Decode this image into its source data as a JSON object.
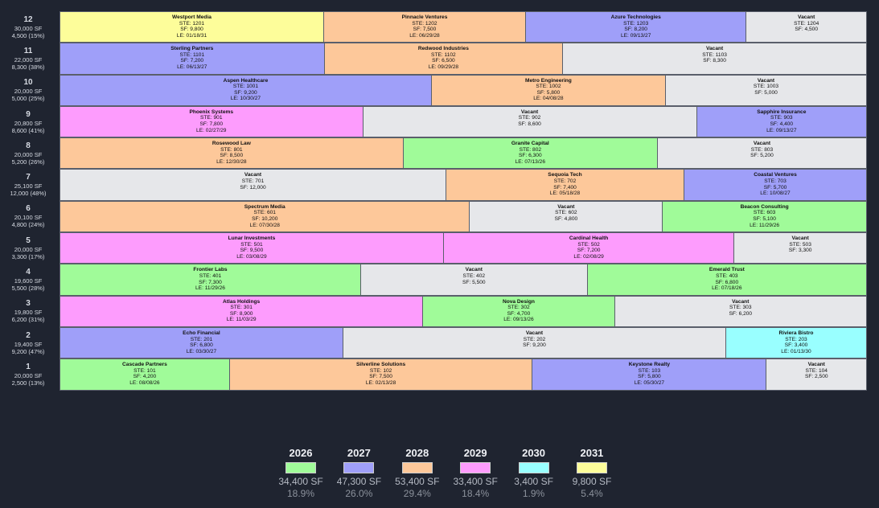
{
  "floors": [
    {
      "floor": "12",
      "total": "30,000 SF",
      "vacancy": "4,500 (15%)",
      "suites": [
        {
          "tenant": "Westport Media",
          "suite": "STE: 1201",
          "sf": "SF: 9,800",
          "le": "LE: 01/18/31",
          "year": "2031",
          "sf_value": 9800
        },
        {
          "tenant": "Pinnacle Ventures",
          "suite": "STE: 1202",
          "sf": "SF: 7,500",
          "le": "LE: 06/29/28",
          "year": "2028",
          "sf_value": 7500
        },
        {
          "tenant": "Azure Technologies",
          "suite": "STE: 1203",
          "sf": "SF: 8,200",
          "le": "LE: 09/13/27",
          "year": "2027",
          "sf_value": 8200
        },
        {
          "tenant": "Vacant",
          "suite": "STE: 1204",
          "sf": "SF: 4,500",
          "le": "",
          "year": "vac",
          "sf_value": 4500
        }
      ]
    },
    {
      "floor": "11",
      "total": "22,000 SF",
      "vacancy": "8,300 (38%)",
      "suites": [
        {
          "tenant": "Sterling Partners",
          "suite": "STE: 1101",
          "sf": "SF: 7,200",
          "le": "LE: 06/13/27",
          "year": "2027",
          "sf_value": 7200
        },
        {
          "tenant": "Redwood Industries",
          "suite": "STE: 1102",
          "sf": "SF: 6,500",
          "le": "LE: 09/29/28",
          "year": "2028",
          "sf_value": 6500
        },
        {
          "tenant": "Vacant",
          "suite": "STE: 1103",
          "sf": "SF: 8,300",
          "le": "",
          "year": "vac",
          "sf_value": 8300
        }
      ]
    },
    {
      "floor": "10",
      "total": "20,000 SF",
      "vacancy": "5,000 (25%)",
      "suites": [
        {
          "tenant": "Aspen Healthcare",
          "suite": "STE: 1001",
          "sf": "SF: 9,200",
          "le": "LE: 10/30/27",
          "year": "2027",
          "sf_value": 9200
        },
        {
          "tenant": "Metro Engineering",
          "suite": "STE: 1002",
          "sf": "SF: 5,800",
          "le": "LE: 04/08/28",
          "year": "2028",
          "sf_value": 5800
        },
        {
          "tenant": "Vacant",
          "suite": "STE: 1003",
          "sf": "SF: 5,000",
          "le": "",
          "year": "vac",
          "sf_value": 5000
        }
      ]
    },
    {
      "floor": "9",
      "total": "20,800 SF",
      "vacancy": "8,600 (41%)",
      "suites": [
        {
          "tenant": "Phoenix Systems",
          "suite": "STE: 901",
          "sf": "SF: 7,800",
          "le": "LE: 02/27/29",
          "year": "2029",
          "sf_value": 7800
        },
        {
          "tenant": "Vacant",
          "suite": "STE: 902",
          "sf": "SF: 8,600",
          "le": "",
          "year": "vac",
          "sf_value": 8600
        },
        {
          "tenant": "Sapphire Insurance",
          "suite": "STE: 903",
          "sf": "SF: 4,400",
          "le": "LE: 09/13/27",
          "year": "2027",
          "sf_value": 4400
        }
      ]
    },
    {
      "floor": "8",
      "total": "20,000 SF",
      "vacancy": "5,200 (26%)",
      "suites": [
        {
          "tenant": "Rosewood Law",
          "suite": "STE: 801",
          "sf": "SF: 8,500",
          "le": "LE: 12/30/28",
          "year": "2028",
          "sf_value": 8500
        },
        {
          "tenant": "Granite Capital",
          "suite": "STE: 802",
          "sf": "SF: 6,300",
          "le": "LE: 07/13/26",
          "year": "2026",
          "sf_value": 6300
        },
        {
          "tenant": "Vacant",
          "suite": "STE: 803",
          "sf": "SF: 5,200",
          "le": "",
          "year": "vac",
          "sf_value": 5200
        }
      ]
    },
    {
      "floor": "7",
      "total": "25,100 SF",
      "vacancy": "12,000 (48%)",
      "suites": [
        {
          "tenant": "Vacant",
          "suite": "STE: 701",
          "sf": "SF: 12,000",
          "le": "",
          "year": "vac",
          "sf_value": 12000
        },
        {
          "tenant": "Sequoia Tech",
          "suite": "STE: 702",
          "sf": "SF: 7,400",
          "le": "LE: 05/18/28",
          "year": "2028",
          "sf_value": 7400
        },
        {
          "tenant": "Coastal Ventures",
          "suite": "STE: 703",
          "sf": "SF: 5,700",
          "le": "LE: 10/08/27",
          "year": "2027",
          "sf_value": 5700
        }
      ]
    },
    {
      "floor": "6",
      "total": "20,100 SF",
      "vacancy": "4,800 (24%)",
      "suites": [
        {
          "tenant": "Spectrum Media",
          "suite": "STE: 601",
          "sf": "SF: 10,200",
          "le": "LE: 07/30/28",
          "year": "2028",
          "sf_value": 10200
        },
        {
          "tenant": "Vacant",
          "suite": "STE: 602",
          "sf": "SF: 4,800",
          "le": "",
          "year": "vac",
          "sf_value": 4800
        },
        {
          "tenant": "Beacon Consulting",
          "suite": "STE: 603",
          "sf": "SF: 5,100",
          "le": "LE: 11/29/26",
          "year": "2026",
          "sf_value": 5100
        }
      ]
    },
    {
      "floor": "5",
      "total": "20,000 SF",
      "vacancy": "3,300 (17%)",
      "suites": [
        {
          "tenant": "Lunar Investments",
          "suite": "STE: 501",
          "sf": "SF: 9,500",
          "le": "LE: 03/08/29",
          "year": "2029",
          "sf_value": 9500
        },
        {
          "tenant": "Cardinal Health",
          "suite": "STE: 502",
          "sf": "SF: 7,200",
          "le": "LE: 02/08/29",
          "year": "2029",
          "sf_value": 7200
        },
        {
          "tenant": "Vacant",
          "suite": "STE: 503",
          "sf": "SF: 3,300",
          "le": "",
          "year": "vac",
          "sf_value": 3300
        }
      ]
    },
    {
      "floor": "4",
      "total": "19,600 SF",
      "vacancy": "5,500 (28%)",
      "suites": [
        {
          "tenant": "Frontier Labs",
          "suite": "STE: 401",
          "sf": "SF: 7,300",
          "le": "LE: 11/29/26",
          "year": "2026",
          "sf_value": 7300
        },
        {
          "tenant": "Vacant",
          "suite": "STE: 402",
          "sf": "SF: 5,500",
          "le": "",
          "year": "vac",
          "sf_value": 5500
        },
        {
          "tenant": "Emerald Trust",
          "suite": "STE: 403",
          "sf": "SF: 6,800",
          "le": "LE: 07/18/26",
          "year": "2026",
          "sf_value": 6800
        }
      ]
    },
    {
      "floor": "3",
      "total": "19,800 SF",
      "vacancy": "6,200 (31%)",
      "suites": [
        {
          "tenant": "Atlas Holdings",
          "suite": "STE: 301",
          "sf": "SF: 8,900",
          "le": "LE: 11/03/29",
          "year": "2029",
          "sf_value": 8900
        },
        {
          "tenant": "Nova Design",
          "suite": "STE: 302",
          "sf": "SF: 4,700",
          "le": "LE: 09/13/26",
          "year": "2026",
          "sf_value": 4700
        },
        {
          "tenant": "Vacant",
          "suite": "STE: 303",
          "sf": "SF: 6,200",
          "le": "",
          "year": "vac",
          "sf_value": 6200
        }
      ]
    },
    {
      "floor": "2",
      "total": "19,400 SF",
      "vacancy": "9,200 (47%)",
      "suites": [
        {
          "tenant": "Echo Financial",
          "suite": "STE: 201",
          "sf": "SF: 6,800",
          "le": "LE: 03/30/27",
          "year": "2027",
          "sf_value": 6800
        },
        {
          "tenant": "Vacant",
          "suite": "STE: 202",
          "sf": "SF: 9,200",
          "le": "",
          "year": "vac",
          "sf_value": 9200
        },
        {
          "tenant": "Riviera Bistro",
          "suite": "STE: 203",
          "sf": "SF: 3,400",
          "le": "LE: 01/13/30",
          "year": "2030",
          "sf_value": 3400
        }
      ]
    },
    {
      "floor": "1",
      "total": "20,000 SF",
      "vacancy": "2,500 (13%)",
      "suites": [
        {
          "tenant": "Cascade Partners",
          "suite": "STE: 101",
          "sf": "SF: 4,200",
          "le": "LE: 08/08/26",
          "year": "2026",
          "sf_value": 4200
        },
        {
          "tenant": "Silverline Solutions",
          "suite": "STE: 102",
          "sf": "SF: 7,500",
          "le": "LE: 02/13/28",
          "year": "2028",
          "sf_value": 7500
        },
        {
          "tenant": "Keystone Realty",
          "suite": "STE: 103",
          "sf": "SF: 5,800",
          "le": "LE: 05/30/27",
          "year": "2027",
          "sf_value": 5800
        },
        {
          "tenant": "Vacant",
          "suite": "STE: 104",
          "sf": "SF: 2,500",
          "le": "",
          "year": "vac",
          "sf_value": 2500
        }
      ]
    }
  ],
  "legend": [
    {
      "year": "2026",
      "sf": "34,400 SF",
      "pct": "18.9%",
      "color": "#a0fb99"
    },
    {
      "year": "2027",
      "sf": "47,300 SF",
      "pct": "26.0%",
      "color": "#9f9ff9"
    },
    {
      "year": "2028",
      "sf": "53,400 SF",
      "pct": "29.4%",
      "color": "#fdc89a"
    },
    {
      "year": "2029",
      "sf": "33,400 SF",
      "pct": "18.4%",
      "color": "#fd9cfd"
    },
    {
      "year": "2030",
      "sf": "3,400 SF",
      "pct": "1.9%",
      "color": "#99ffff"
    },
    {
      "year": "2031",
      "sf": "9,800 SF",
      "pct": "5.4%",
      "color": "#fdfd9a"
    }
  ]
}
